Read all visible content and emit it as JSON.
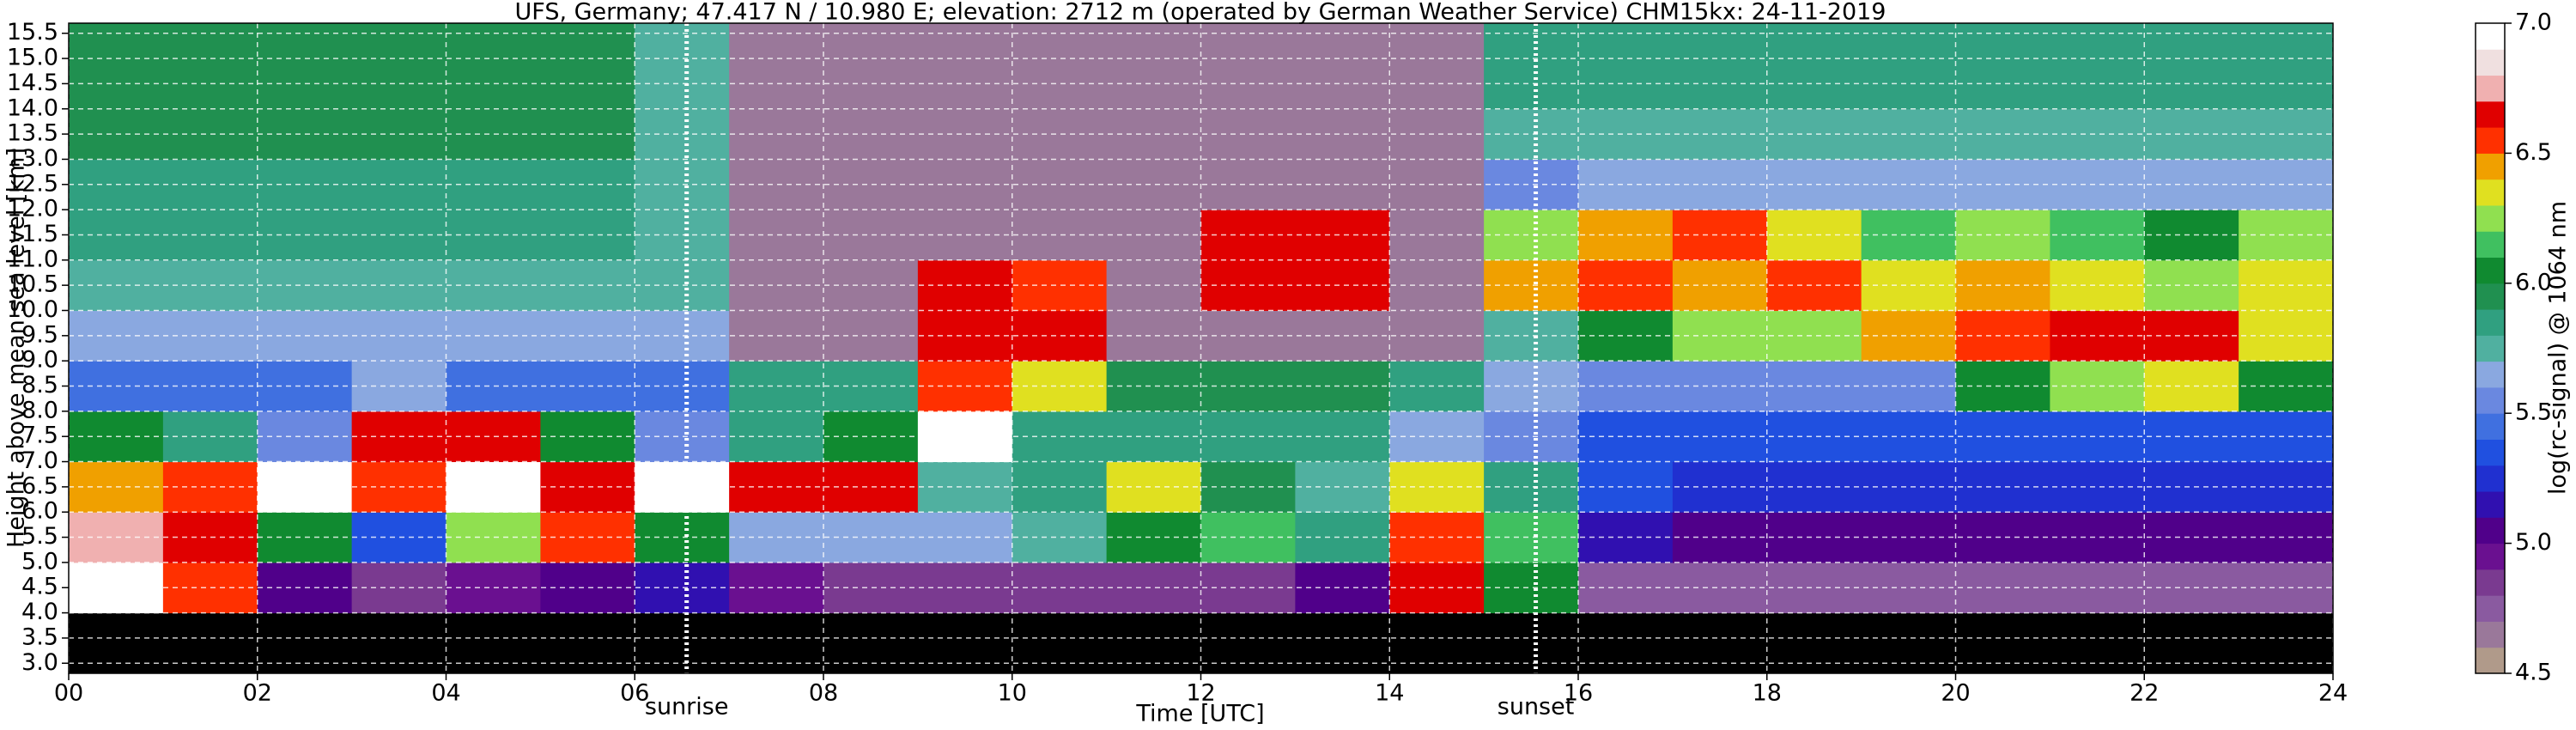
{
  "chart_data": {
    "type": "heatmap",
    "title": "UFS, Germany; 47.417 N / 10.980 E; elevation: 2712 m  (operated by German Weather Service)    CHM15kx: 24-11-2019",
    "x_label": "Time [UTC]",
    "y_label": "Height above mean sea level [km]",
    "colorbar_label": "log(rc-signal) @ 1064 nm",
    "xlim": [
      0,
      24
    ],
    "ylim": [
      2.8,
      15.7
    ],
    "xticks": [
      {
        "value": 0,
        "label": "00"
      },
      {
        "value": 2,
        "label": "02"
      },
      {
        "value": 4,
        "label": "04"
      },
      {
        "value": 6,
        "label": "06"
      },
      {
        "value": 8,
        "label": "08"
      },
      10,
      12,
      14,
      16,
      18,
      20,
      22,
      24
    ],
    "yticks": [
      {
        "value": 3,
        "label": "3.0"
      },
      3.5,
      {
        "value": 4,
        "label": "4.0"
      },
      4.5,
      {
        "value": 5,
        "label": "5.0"
      },
      5.5,
      {
        "value": 6,
        "label": "6.0"
      },
      6.5,
      {
        "value": 7,
        "label": "7.0"
      },
      7.5,
      {
        "value": 8,
        "label": "8.0"
      },
      8.5,
      {
        "value": 9,
        "label": "9.0"
      },
      9.5,
      {
        "value": 10,
        "label": "10.0"
      },
      10.5,
      {
        "value": 11,
        "label": "11.0"
      },
      11.5,
      {
        "value": 12,
        "label": "12.0"
      },
      12.5,
      {
        "value": 13,
        "label": "13.0"
      },
      13.5,
      {
        "value": 14,
        "label": "14.0"
      },
      14.5,
      {
        "value": 15,
        "label": "15.0"
      },
      15.5
    ],
    "grid": true,
    "annotations": [
      {
        "text": "sunrise",
        "x": 6.55
      },
      {
        "text": "sunset",
        "x": 15.55
      }
    ],
    "clim": [
      4.5,
      7.0
    ],
    "cticks": [
      4.5,
      {
        "value": 5,
        "label": "5.0"
      },
      5.5,
      {
        "value": 6,
        "label": "6.0"
      },
      6.5,
      {
        "value": 7,
        "label": "7.0"
      }
    ],
    "colors": [
      "#b09a8a",
      "#9a789a",
      "#8a5aa0",
      "#7a3a90",
      "#6a1090",
      "#50008a",
      "#3010b0",
      "#2030d0",
      "#2050e0",
      "#4070e0",
      "#6a88e0",
      "#8aa8e0",
      "#50b0a0",
      "#30a080",
      "#209050",
      "#108a30",
      "#40c060",
      "#90e050",
      "#e0e020",
      "#f0a000",
      "#ff3000",
      "#e00000",
      "#f0b0b0",
      "#f0e0e0",
      "#ffffff"
    ],
    "under_color": "#000000",
    "x_edges": [
      0,
      1,
      2,
      3,
      4,
      5,
      6,
      7,
      8,
      9,
      10,
      11,
      12,
      13,
      14,
      15,
      16,
      17,
      18,
      19,
      20,
      21,
      22,
      23,
      24
    ],
    "y_edges": [
      2.8,
      4,
      5,
      6,
      7,
      8,
      9,
      10,
      11,
      12,
      13,
      14,
      15,
      15.7
    ],
    "z": [
      [
        4.4,
        4.4,
        4.4,
        4.4,
        4.4,
        4.4,
        4.4,
        4.4,
        4.4,
        4.4,
        4.4,
        4.4,
        4.4,
        4.4,
        4.4,
        4.4,
        4.4,
        4.4,
        4.4,
        4.4,
        4.4,
        4.4,
        4.4,
        4.4
      ],
      [
        6.9,
        6.5,
        5.0,
        4.8,
        4.9,
        5.0,
        5.1,
        4.9,
        4.8,
        4.8,
        4.8,
        4.8,
        4.8,
        5.0,
        6.6,
        6.0,
        4.7,
        4.7,
        4.7,
        4.7,
        4.7,
        4.7,
        4.7,
        4.7
      ],
      [
        6.7,
        6.6,
        6.0,
        5.3,
        6.2,
        6.5,
        6.0,
        5.6,
        5.6,
        5.6,
        5.7,
        6.0,
        6.1,
        5.8,
        6.5,
        6.1,
        5.1,
        5.0,
        5.0,
        5.0,
        5.0,
        5.0,
        5.0,
        5.0
      ],
      [
        6.4,
        6.5,
        6.9,
        6.5,
        6.9,
        6.6,
        6.9,
        6.6,
        6.6,
        5.7,
        5.8,
        6.3,
        5.9,
        5.7,
        6.3,
        5.8,
        5.3,
        5.2,
        5.2,
        5.2,
        5.2,
        5.2,
        5.2,
        5.2
      ],
      [
        6.0,
        5.8,
        5.5,
        6.6,
        6.6,
        6.0,
        5.5,
        5.8,
        6.0,
        6.9,
        5.8,
        5.8,
        5.8,
        5.8,
        5.6,
        5.5,
        5.3,
        5.3,
        5.3,
        5.3,
        5.3,
        5.3,
        5.3,
        5.3
      ],
      [
        5.4,
        5.4,
        5.4,
        5.6,
        5.4,
        5.4,
        5.4,
        5.8,
        5.8,
        6.5,
        6.3,
        5.9,
        5.9,
        5.9,
        5.8,
        5.6,
        5.5,
        5.5,
        5.5,
        5.5,
        6.0,
        6.2,
        6.3,
        6.0
      ],
      [
        5.6,
        5.6,
        5.6,
        5.6,
        5.6,
        5.6,
        5.6,
        4.6,
        4.6,
        6.6,
        6.6,
        4.6,
        4.6,
        4.6,
        4.6,
        5.7,
        6.0,
        6.2,
        6.2,
        6.4,
        6.5,
        6.6,
        6.6,
        6.3
      ],
      [
        5.7,
        5.7,
        5.7,
        5.7,
        5.7,
        5.7,
        5.7,
        4.6,
        4.6,
        6.6,
        6.5,
        4.6,
        6.6,
        6.6,
        4.6,
        6.4,
        6.5,
        6.4,
        6.5,
        6.3,
        6.4,
        6.3,
        6.2,
        6.3
      ],
      [
        5.8,
        5.8,
        5.8,
        5.8,
        5.8,
        5.8,
        5.7,
        4.6,
        4.6,
        4.6,
        4.6,
        4.6,
        6.6,
        6.6,
        4.6,
        6.2,
        6.4,
        6.5,
        6.3,
        6.1,
        6.2,
        6.1,
        6.0,
        6.2
      ],
      [
        5.8,
        5.8,
        5.8,
        5.8,
        5.8,
        5.8,
        5.7,
        4.6,
        4.6,
        4.6,
        4.6,
        4.6,
        4.6,
        4.6,
        4.6,
        5.5,
        5.6,
        5.6,
        5.6,
        5.6,
        5.6,
        5.6,
        5.6,
        5.6
      ],
      [
        5.9,
        5.9,
        5.9,
        5.9,
        5.9,
        5.9,
        5.7,
        4.6,
        4.6,
        4.6,
        4.6,
        4.6,
        4.6,
        4.6,
        4.6,
        5.7,
        5.7,
        5.7,
        5.7,
        5.7,
        5.7,
        5.7,
        5.7,
        5.7
      ],
      [
        5.9,
        5.9,
        5.9,
        5.9,
        5.9,
        5.9,
        5.7,
        4.6,
        4.6,
        4.6,
        4.6,
        4.6,
        4.6,
        4.6,
        4.6,
        5.8,
        5.8,
        5.8,
        5.8,
        5.8,
        5.8,
        5.8,
        5.8,
        5.8
      ],
      [
        5.9,
        5.9,
        5.9,
        5.9,
        5.9,
        5.9,
        5.7,
        4.6,
        4.6,
        4.6,
        4.6,
        4.6,
        4.6,
        4.6,
        4.6,
        5.8,
        5.8,
        5.8,
        5.8,
        5.8,
        5.8,
        5.8,
        5.8,
        5.8
      ]
    ]
  }
}
